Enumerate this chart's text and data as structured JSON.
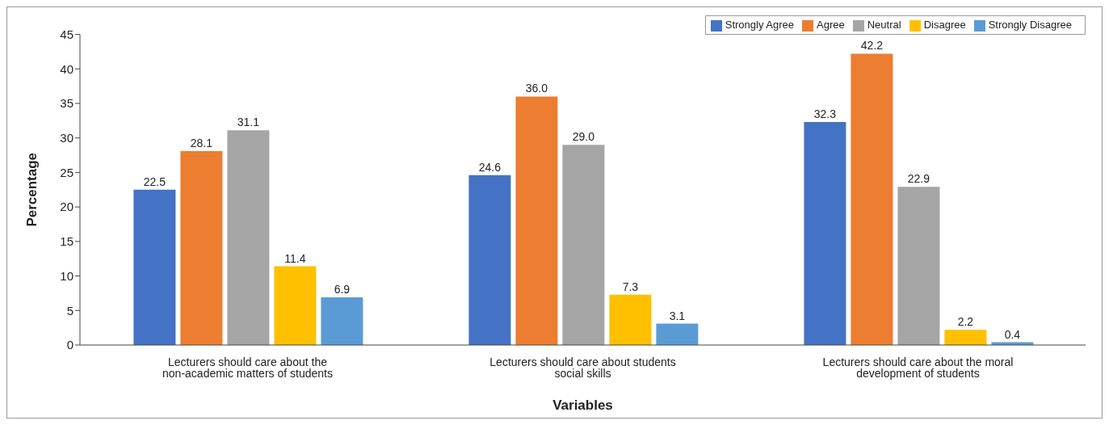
{
  "chart_data": {
    "type": "bar",
    "xlabel": "Variables",
    "ylabel": "Percentage",
    "categories": [
      "Lecturers should care about the non-academic matters of students",
      "Lecturers should care about students social skills",
      "Lecturers should care about the moral development of students"
    ],
    "series": [
      {
        "name": "Strongly Agree",
        "color": "#4472c4",
        "values": [
          22.5,
          24.6,
          32.3
        ],
        "value_labels": [
          "22.5",
          "24.6",
          "32.3"
        ]
      },
      {
        "name": "Agree",
        "color": "#ed7d31",
        "values": [
          28.1,
          36.0,
          42.2
        ],
        "value_labels": [
          "28.1",
          "36.0",
          "42.2"
        ]
      },
      {
        "name": "Neutral",
        "color": "#a5a5a5",
        "values": [
          31.1,
          29.0,
          22.9
        ],
        "value_labels": [
          "31.1",
          "29.0",
          "22.9"
        ]
      },
      {
        "name": "Disagree",
        "color": "#ffc000",
        "values": [
          11.4,
          7.3,
          2.2
        ],
        "value_labels": [
          "11.4",
          "7.3",
          "2.2"
        ]
      },
      {
        "name": "Strongly Disagree",
        "color": "#5b9bd5",
        "values": [
          6.9,
          3.1,
          0.4
        ],
        "value_labels": [
          "6.9",
          "3.1",
          "0.4"
        ]
      }
    ],
    "ylim": [
      0,
      45
    ],
    "yticks": [
      0,
      5,
      10,
      15,
      20,
      25,
      30,
      35,
      40,
      45
    ],
    "grid": false,
    "legend": "top right"
  }
}
